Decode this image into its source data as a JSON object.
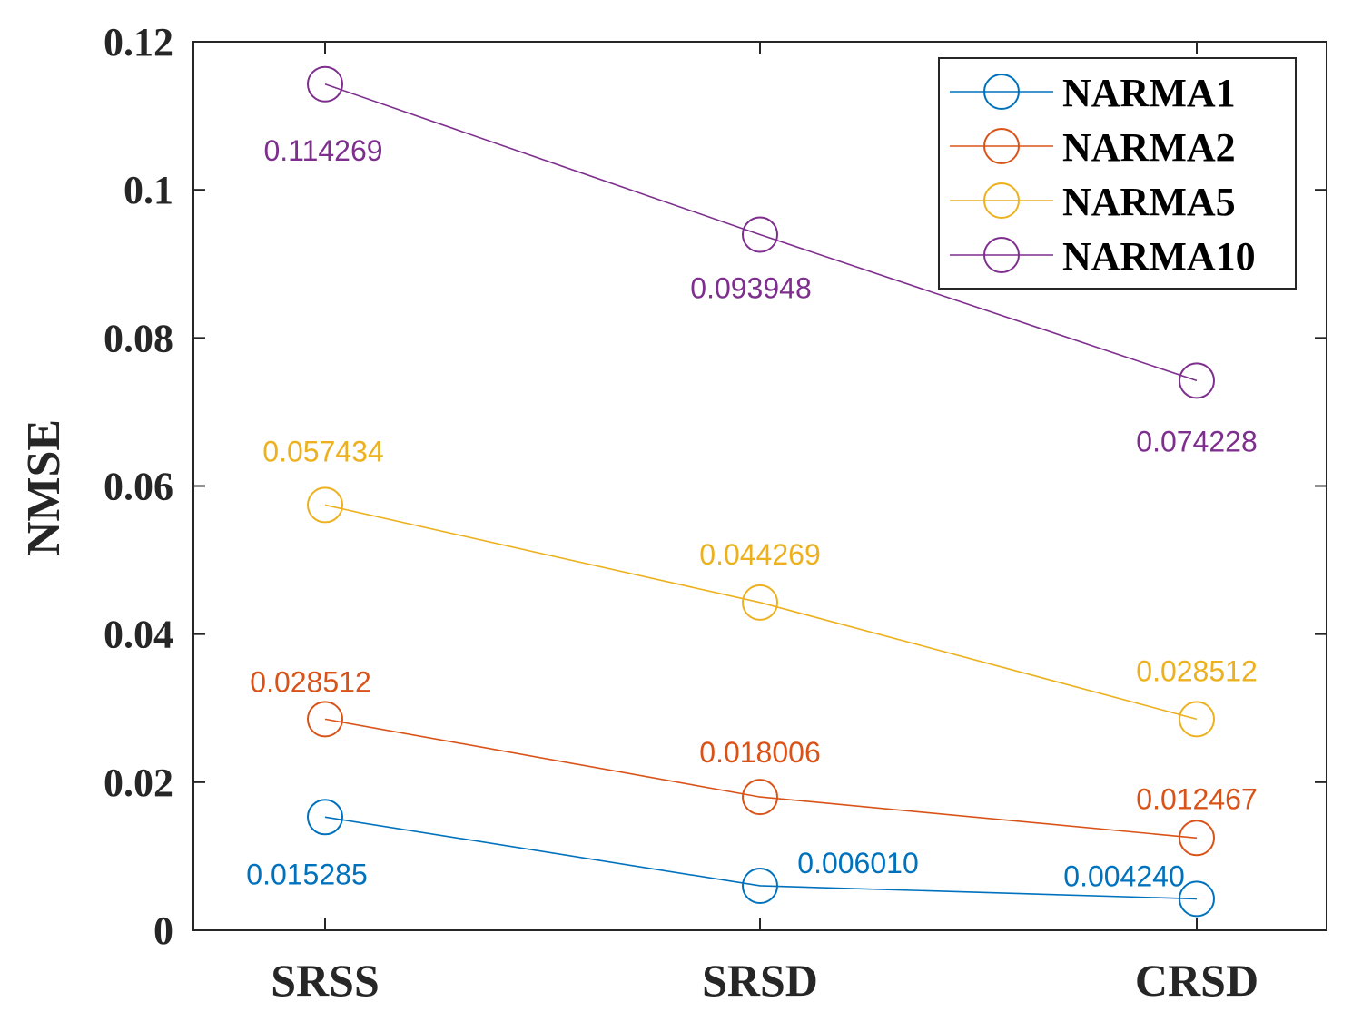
{
  "chart_data": {
    "type": "line",
    "ylabel": "NMSE",
    "xlabel": "",
    "categories": [
      "SRSS",
      "SRSD",
      "CRSD"
    ],
    "ylim": [
      0,
      0.12
    ],
    "yticks": [
      0,
      0.02,
      0.04,
      0.06,
      0.08,
      0.1,
      0.12
    ],
    "ytick_labels": [
      "0",
      "0.02",
      "0.04",
      "0.06",
      "0.08",
      "0.1",
      "0.12"
    ],
    "grid": false,
    "legend_position": "top-right",
    "marker": "circle",
    "series": [
      {
        "name": "NARMA1",
        "color": "#0072BD",
        "values": [
          0.015285,
          0.00601,
          0.00424
        ],
        "labels": [
          "0.015285",
          "0.006010",
          "0.004240"
        ]
      },
      {
        "name": "NARMA2",
        "color": "#D95319",
        "values": [
          0.028512,
          0.018006,
          0.012467
        ],
        "labels": [
          "0.028512",
          "0.018006",
          "0.012467"
        ]
      },
      {
        "name": "NARMA5",
        "color": "#EDB120",
        "values": [
          0.057434,
          0.044269,
          0.028512
        ],
        "labels": [
          "0.057434",
          "0.044269",
          "0.028512"
        ]
      },
      {
        "name": "NARMA10",
        "color": "#7E2F8E",
        "values": [
          0.114269,
          0.093948,
          0.074228
        ],
        "labels": [
          "0.114269",
          "0.093948",
          "0.074228"
        ]
      }
    ]
  }
}
